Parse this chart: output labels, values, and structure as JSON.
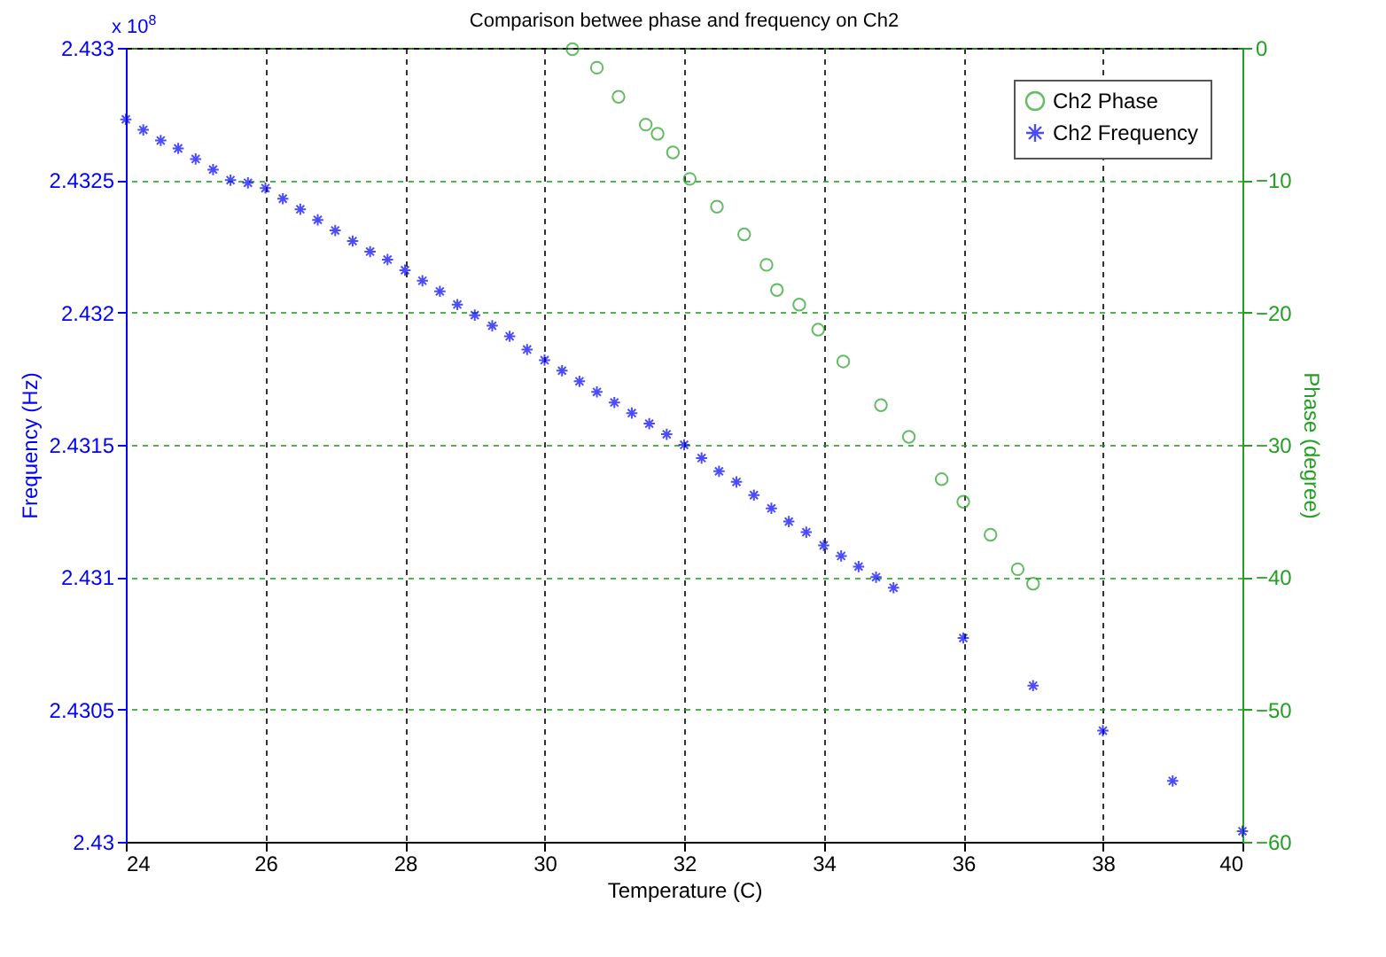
{
  "chart_data": {
    "type": "scatter",
    "title": "Comparison betwee phase and frequency on Ch2",
    "xlabel": "Temperature (C)",
    "ylabel": "Frequency (Hz)",
    "y2label": "Phase (degree)",
    "xlim": [
      24,
      40
    ],
    "xticks": [
      24,
      26,
      28,
      30,
      32,
      34,
      36,
      38,
      40
    ],
    "ylim": [
      2.43,
      2.433
    ],
    "yticks": [
      2.43,
      2.4305,
      2.431,
      2.4315,
      2.432,
      2.4325,
      2.433
    ],
    "y2lim": [
      -60,
      0
    ],
    "y2ticks": [
      -60,
      -50,
      -40,
      -30,
      -20,
      -10,
      0
    ],
    "grid": true,
    "legend": "top right",
    "annotations": [
      "x 10$^{8}$"
    ],
    "series": [
      {
        "name": "Ch2 Phase",
        "color": "#22a022",
        "axis": "y2",
        "marker": "circle",
        "x": [
          30.4,
          30.75,
          31.06,
          31.45,
          31.62,
          31.84,
          32.08,
          32.47,
          32.86,
          33.18,
          33.33,
          33.65,
          33.92,
          34.28,
          34.82,
          35.22,
          35.69,
          36.0,
          36.39,
          36.78,
          37.0
        ],
        "values": [
          -0.1,
          -1.5,
          -3.7,
          -5.8,
          -6.5,
          -7.9,
          -9.9,
          -12.0,
          -14.1,
          -16.4,
          -18.3,
          -19.4,
          -21.3,
          -23.7,
          -27.0,
          -29.4,
          -32.6,
          -34.3,
          -36.8,
          -39.4,
          -40.5
        ]
      },
      {
        "name": "Ch2 Frequency",
        "color": "#0000ff",
        "axis": "y",
        "marker": "cross",
        "x": [
          24,
          24.25,
          24.5,
          24.75,
          25,
          25.25,
          25.5,
          25.75,
          26,
          26.25,
          26.5,
          26.75,
          27,
          27.25,
          27.5,
          27.75,
          28,
          28.25,
          28.5,
          28.75,
          29,
          29.25,
          29.5,
          29.75,
          30,
          30.25,
          30.5,
          30.75,
          31,
          31.25,
          31.5,
          31.75,
          32,
          32.25,
          32.5,
          32.75,
          33,
          33.25,
          33.5,
          33.75,
          34,
          34.25,
          34.5,
          34.75,
          35,
          36,
          37,
          38,
          39,
          40
        ],
        "values": [
          2.43273,
          2.43269,
          2.43265,
          2.43262,
          2.43258,
          2.43254,
          2.4325,
          2.43249,
          2.43247,
          2.43243,
          2.43239,
          2.43235,
          2.43231,
          2.43227,
          2.43223,
          2.4322,
          2.43216,
          2.43212,
          2.43208,
          2.43203,
          2.43199,
          2.43195,
          2.43191,
          2.43186,
          2.43182,
          2.43178,
          2.43174,
          2.4317,
          2.43166,
          2.43162,
          2.43158,
          2.43154,
          2.4315,
          2.43145,
          2.4314,
          2.43136,
          2.43131,
          2.43126,
          2.43121,
          2.43117,
          2.43112,
          2.43108,
          2.43104,
          2.431,
          2.43096,
          2.43077,
          2.43059,
          2.43042,
          2.43023,
          2.43004
        ]
      }
    ]
  }
}
